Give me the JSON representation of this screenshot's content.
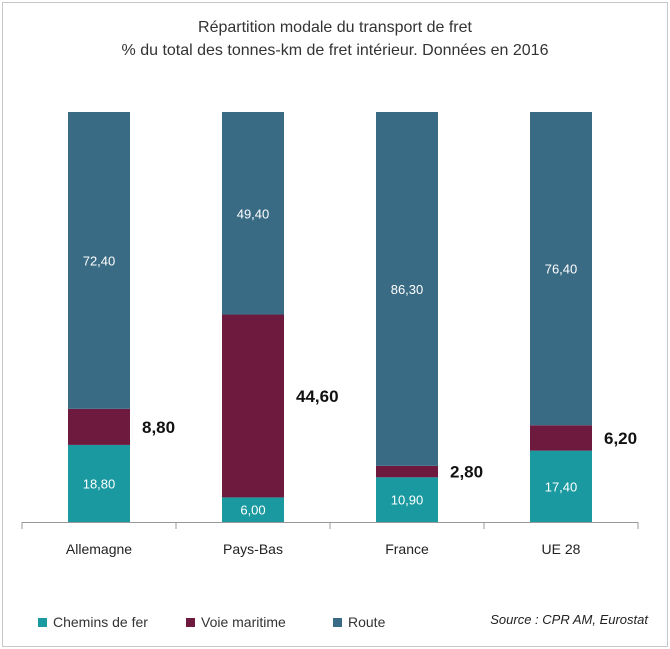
{
  "chart_data": {
    "type": "bar",
    "stacked": true,
    "title": "Répartition modale du transport de fret",
    "subtitle": "% du total des tonnes-km de fret intérieur. Données en 2016",
    "categories": [
      "Allemagne",
      "Pays-Bas",
      "France",
      "UE 28"
    ],
    "series": [
      {
        "name": "Chemins de fer",
        "color": "#1a9aa0",
        "values": [
          18.8,
          6.0,
          10.9,
          17.4
        ],
        "labels": [
          "18,80",
          "6,00",
          "10,90",
          "17,40"
        ]
      },
      {
        "name": "Voie maritime",
        "color": "#6e1a3f",
        "values": [
          8.8,
          44.6,
          2.8,
          6.2
        ],
        "labels": [
          "8,80",
          "44,60",
          "2,80",
          "6,20"
        ]
      },
      {
        "name": "Route",
        "color": "#3a6b84",
        "values": [
          72.4,
          49.4,
          86.3,
          76.4
        ],
        "labels": [
          "72,40",
          "49,40",
          "86,30",
          "76,40"
        ]
      }
    ],
    "ylim": [
      0,
      100
    ],
    "grid": false,
    "legend_position": "bottom-left",
    "source": "Source : CPR AM, Eurostat"
  }
}
